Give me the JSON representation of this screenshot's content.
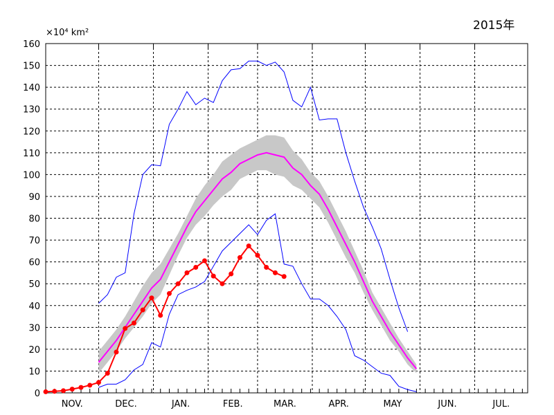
{
  "chart_data": {
    "type": "line",
    "title": "2015年",
    "ylabel": "×10⁴ km²",
    "ylim": [
      0,
      160
    ],
    "yticks": [
      0,
      10,
      20,
      30,
      40,
      50,
      60,
      70,
      80,
      90,
      100,
      110,
      120,
      130,
      140,
      150,
      160
    ],
    "xlabel": "",
    "x_unit": "days since Nov. 1",
    "months": [
      "NOV.",
      "DEC.",
      "JAN.",
      "FEB.",
      "MAR.",
      "APR.",
      "MAY",
      "JUN.",
      "JUL."
    ],
    "month_start_days": [
      0,
      30,
      61,
      92,
      120,
      151,
      181,
      212,
      243,
      273
    ],
    "grid": true,
    "series": [
      {
        "name": "2015",
        "color": "#ff0000",
        "start_day": 0,
        "step": 5,
        "values": [
          0.5,
          0.7,
          1.0,
          1.7,
          2.5,
          3.5,
          4.8,
          9,
          18.7,
          29.5,
          32,
          38,
          43.5,
          35.5,
          45.5,
          50,
          55,
          57.5,
          60.5,
          53.5,
          50,
          54.5,
          62,
          67.3,
          63,
          57.5,
          55,
          53.3
        ]
      },
      {
        "name": "mean",
        "color": "#ff00ff",
        "start_day": 30,
        "step": 5,
        "values": [
          14,
          19,
          24,
          30,
          36,
          42,
          48,
          52,
          60,
          68,
          76,
          83,
          88,
          93,
          98,
          101,
          105,
          107,
          109,
          110,
          109,
          108,
          103,
          100,
          95,
          91,
          84,
          76,
          68,
          60,
          51,
          42,
          35,
          28,
          22,
          16,
          11
        ]
      },
      {
        "name": "std-band",
        "color": "#c8c8c8",
        "start_day": 30,
        "step": 5,
        "halfwidth": [
          5,
          5,
          5,
          5,
          6,
          7,
          7,
          7,
          6,
          5,
          5,
          6,
          7,
          7,
          8,
          8,
          7,
          7,
          7,
          8,
          9,
          9,
          8,
          7,
          6,
          6,
          6,
          6,
          6,
          5,
          5,
          4,
          4,
          4,
          3,
          3,
          2
        ]
      },
      {
        "name": "max",
        "color": "#0000ff",
        "start_day": 30,
        "step": 5,
        "values": [
          41,
          45,
          53,
          55,
          82,
          100,
          104.5,
          104,
          123,
          130,
          138,
          132,
          135,
          133,
          143,
          148,
          148.5,
          152,
          152,
          150,
          151.5,
          147,
          134,
          131,
          140,
          125,
          125.5,
          125.5,
          110,
          97,
          85,
          76,
          66,
          52,
          39,
          28
        ]
      },
      {
        "name": "min",
        "color": "#0000ff",
        "start_day": 30,
        "step": 5,
        "values": [
          2.5,
          4,
          4,
          6,
          10.5,
          13,
          23,
          21,
          36,
          45,
          47,
          48.5,
          51,
          58,
          65,
          69,
          73,
          77,
          72.5,
          79,
          82,
          59,
          58,
          50,
          43,
          43,
          40,
          35,
          29,
          17,
          15,
          12,
          9,
          8,
          3,
          1.5,
          0.5
        ]
      }
    ]
  }
}
